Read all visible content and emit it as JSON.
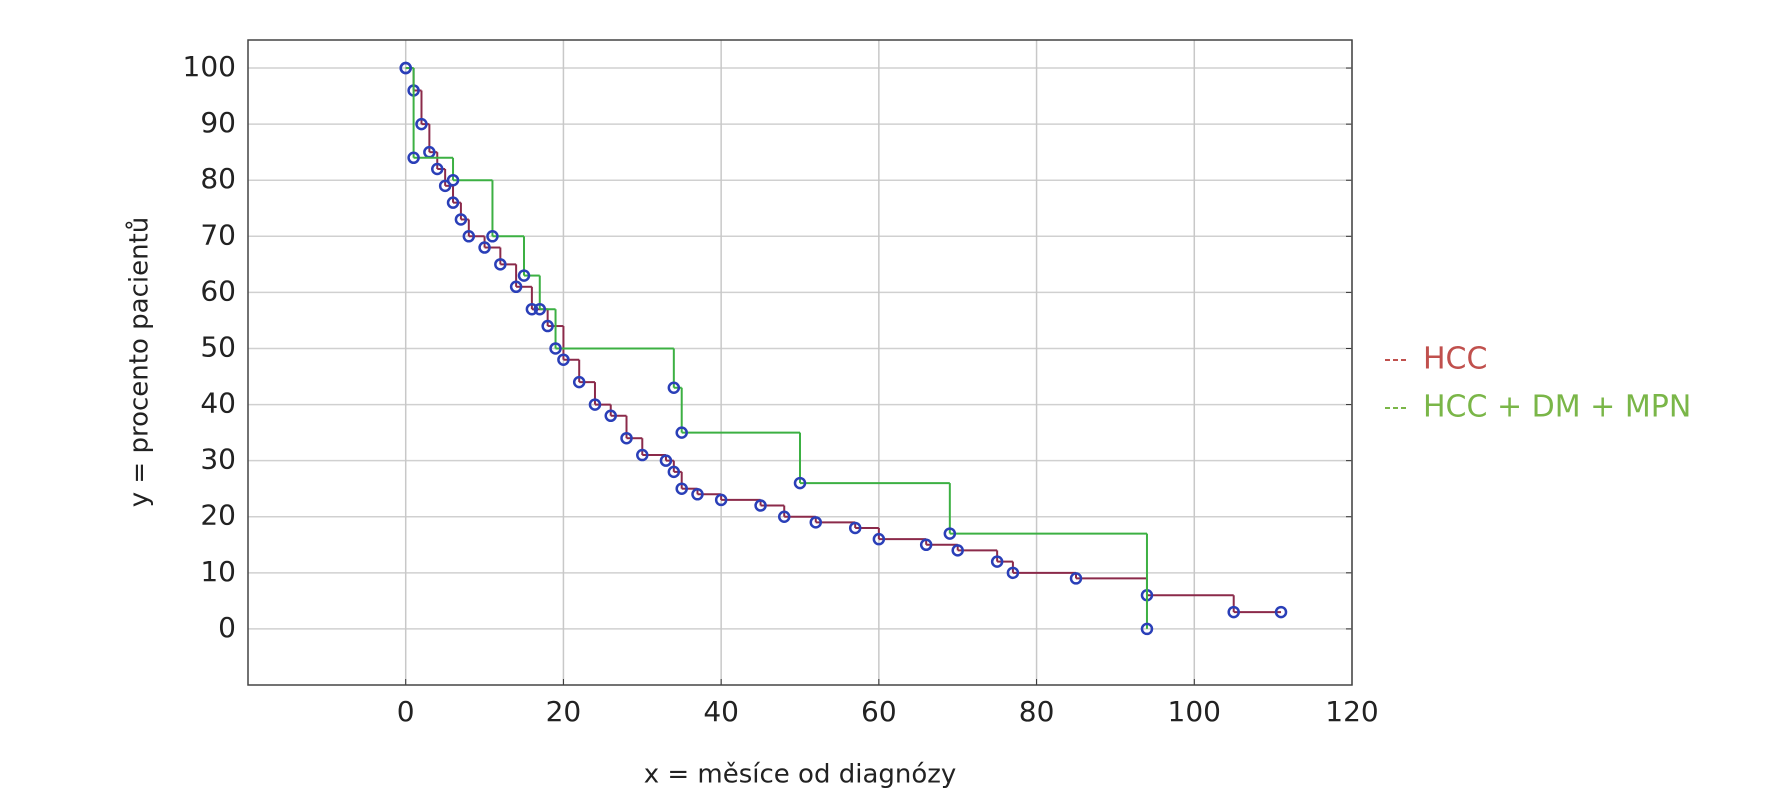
{
  "chart_data": {
    "type": "line",
    "drawstyle": "steps-post",
    "xlabel": "x = měsíce od diagnózy",
    "ylabel": "y = procento pacientů",
    "xlim": [
      -20,
      120
    ],
    "ylim": [
      -10,
      105
    ],
    "xticks": [
      0,
      20,
      40,
      60,
      80,
      100,
      120
    ],
    "yticks": [
      0,
      10,
      20,
      30,
      40,
      50,
      60,
      70,
      80,
      90,
      100
    ],
    "grid": true,
    "legend": "right",
    "series": [
      {
        "name": "HCC",
        "color": "#c0504d",
        "line_color": "#8b2a4a",
        "marker_color": "#2a3fb8",
        "x": [
          0,
          1,
          2,
          3,
          4,
          5,
          6,
          7,
          8,
          10,
          12,
          14,
          16,
          18,
          20,
          22,
          24,
          26,
          28,
          30,
          33,
          34,
          35,
          37,
          40,
          45,
          48,
          52,
          57,
          60,
          66,
          70,
          75,
          77,
          85,
          94,
          105,
          111
        ],
        "values": [
          100,
          96,
          90,
          85,
          82,
          79,
          76,
          73,
          70,
          68,
          65,
          61,
          57,
          54,
          48,
          44,
          40,
          38,
          34,
          31,
          30,
          28,
          25,
          24,
          23,
          22,
          20,
          19,
          18,
          16,
          15,
          14,
          12,
          10,
          9,
          6,
          3,
          3
        ]
      },
      {
        "name": "HCC + DM + MPN",
        "color": "#7ab648",
        "line_color": "#3cb043",
        "marker_color": "#2a3fb8",
        "x": [
          0,
          1,
          6,
          11,
          15,
          17,
          19,
          34,
          35,
          50,
          69,
          94
        ],
        "values": [
          100,
          84,
          80,
          70,
          63,
          57,
          50,
          43,
          35,
          26,
          17,
          0
        ]
      }
    ]
  }
}
